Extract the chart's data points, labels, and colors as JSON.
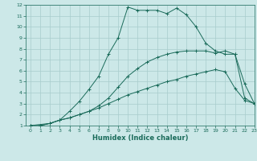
{
  "xlabel": "Humidex (Indice chaleur)",
  "xlim": [
    -0.5,
    23
  ],
  "ylim": [
    1,
    12
  ],
  "xticks": [
    0,
    1,
    2,
    3,
    4,
    5,
    6,
    7,
    8,
    9,
    10,
    11,
    12,
    13,
    14,
    15,
    16,
    17,
    18,
    19,
    20,
    21,
    22,
    23
  ],
  "yticks": [
    1,
    2,
    3,
    4,
    5,
    6,
    7,
    8,
    9,
    10,
    11,
    12
  ],
  "bg_color": "#cce8e8",
  "line_color": "#1a6b5a",
  "grid_color": "#a8cccc",
  "line1_x": [
    0,
    1,
    2,
    3,
    4,
    5,
    6,
    7,
    8,
    9,
    10,
    11,
    12,
    13,
    14,
    15,
    16,
    17,
    18,
    19,
    20,
    21,
    22,
    23
  ],
  "line1_y": [
    1.0,
    1.0,
    1.2,
    1.5,
    1.7,
    2.0,
    2.3,
    2.6,
    3.0,
    3.4,
    3.8,
    4.1,
    4.4,
    4.7,
    5.0,
    5.2,
    5.5,
    5.7,
    5.9,
    6.1,
    5.9,
    4.4,
    3.3,
    3.0
  ],
  "line2_x": [
    0,
    2,
    3,
    4,
    5,
    6,
    7,
    8,
    9,
    10,
    11,
    12,
    13,
    14,
    15,
    16,
    17,
    18,
    19,
    20,
    21,
    22,
    23
  ],
  "line2_y": [
    1.0,
    1.2,
    1.5,
    1.7,
    2.0,
    2.3,
    2.8,
    3.5,
    4.5,
    5.5,
    6.2,
    6.8,
    7.2,
    7.5,
    7.7,
    7.8,
    7.8,
    7.8,
    7.6,
    7.8,
    7.5,
    3.5,
    3.0
  ],
  "line3_x": [
    0,
    1,
    2,
    3,
    4,
    5,
    6,
    7,
    8,
    9,
    10,
    11,
    12,
    13,
    14,
    15,
    16,
    17,
    18,
    19,
    20,
    21,
    22,
    23
  ],
  "line3_y": [
    1.0,
    1.0,
    1.2,
    1.5,
    2.3,
    3.2,
    4.3,
    5.5,
    7.5,
    9.0,
    11.8,
    11.5,
    11.5,
    11.5,
    11.2,
    11.7,
    11.1,
    10.0,
    8.5,
    7.8,
    7.5,
    7.5,
    4.8,
    3.0
  ]
}
